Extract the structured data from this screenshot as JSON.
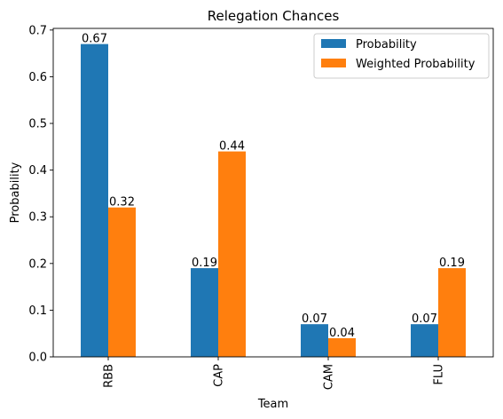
{
  "chart_data": {
    "type": "bar",
    "title": "Relegation Chances",
    "xlabel": "Team",
    "ylabel": "Probability",
    "categories": [
      "RBB",
      "CAP",
      "CAM",
      "FLU"
    ],
    "series": [
      {
        "name": "Probability",
        "values": [
          0.67,
          0.19,
          0.07,
          0.07
        ],
        "color": "#1f77b4"
      },
      {
        "name": "Weighted Probability",
        "values": [
          0.32,
          0.44,
          0.04,
          0.19
        ],
        "color": "#ff7f0e"
      }
    ],
    "data_labels": [
      [
        "0.67",
        "0.19",
        "0.07",
        "0.07"
      ],
      [
        "0.32",
        "0.44",
        "0.04",
        "0.19"
      ]
    ],
    "ylim": [
      0,
      0.7035
    ],
    "yticks": [
      0.0,
      0.1,
      0.2,
      0.3,
      0.4,
      0.5,
      0.6,
      0.7
    ],
    "ytick_labels": [
      "0.0",
      "0.1",
      "0.2",
      "0.3",
      "0.4",
      "0.5",
      "0.6",
      "0.7"
    ],
    "legend_position": "top-right",
    "grid": false
  }
}
